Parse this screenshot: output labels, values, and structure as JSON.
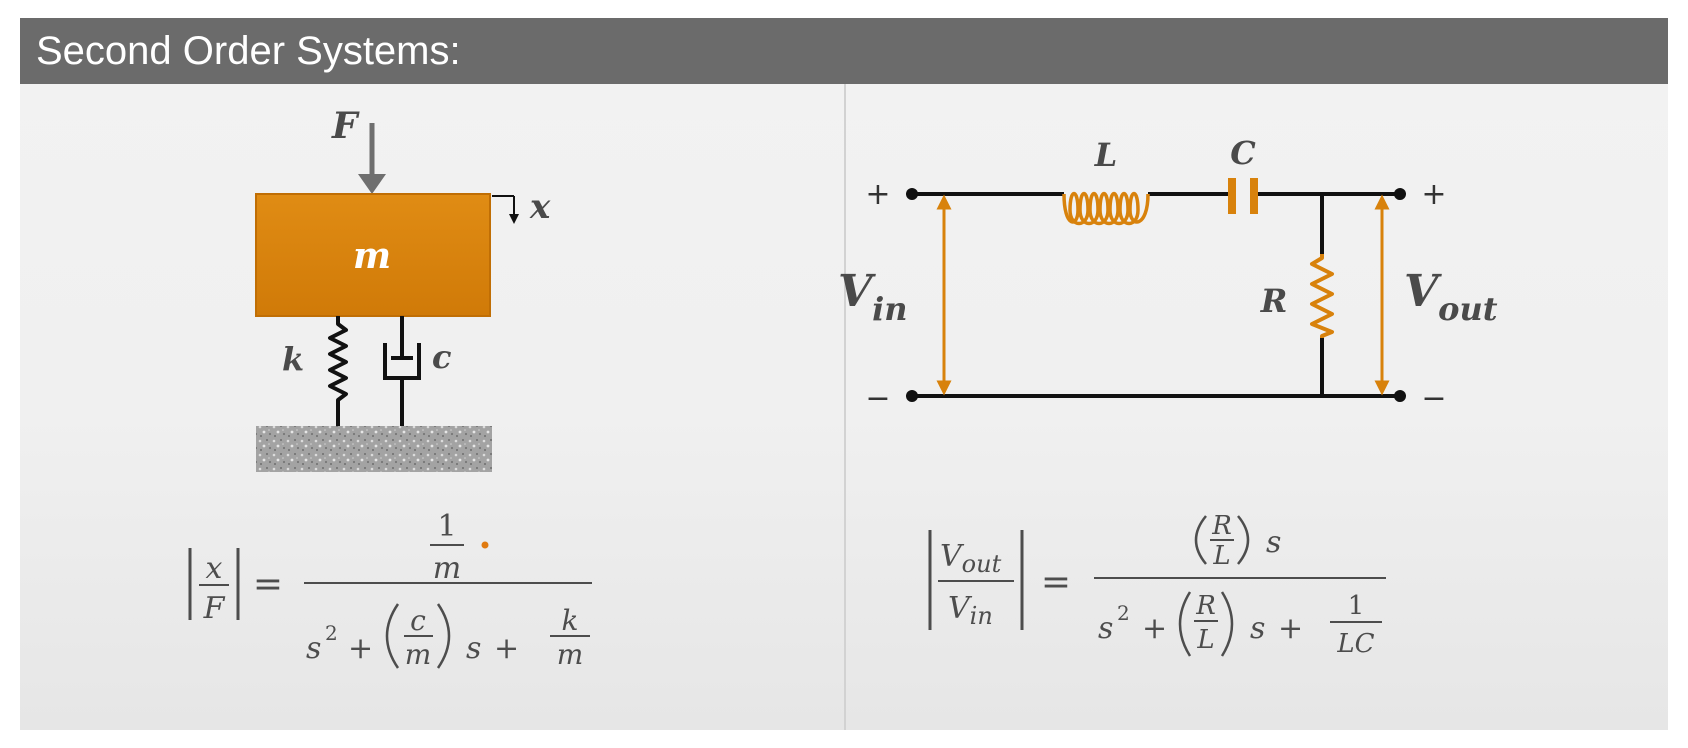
{
  "slide": {
    "title": "Second Order Systems:"
  },
  "mechanical": {
    "force_label": "F",
    "mass_label": "m",
    "displacement_label": "x",
    "spring_label": "k",
    "damper_label": "c",
    "equation": {
      "lhs_num": "x",
      "lhs_den": "F",
      "equals": "=",
      "rhs_num_num": "1",
      "rhs_num_den": "m",
      "den_s": "s",
      "den_pow": "2",
      "den_plus1": "+",
      "den_frac_num": "c",
      "den_frac_den": "m",
      "den_s2": "s",
      "den_plus2": "+",
      "den_k": "k",
      "den_m": "m"
    },
    "colors": {
      "mass": "#d8820c",
      "ground": "#9a9a9a",
      "arrow": "#6f6f6f"
    }
  },
  "electrical": {
    "inductor_label": "L",
    "capacitor_label": "C",
    "resistor_label": "R",
    "vin_main": "V",
    "vin_sub": "in",
    "vout_main": "V",
    "vout_sub": "out",
    "plus_left": "+",
    "minus_left": "−",
    "plus_right": "+",
    "minus_right": "−",
    "equation": {
      "lhs_num_main": "V",
      "lhs_num_sub": "out",
      "lhs_den_main": "V",
      "lhs_den_sub": "in",
      "equals": "=",
      "num_R": "R",
      "num_L": "L",
      "num_s": "s",
      "den_s": "s",
      "den_pow": "2",
      "den_plus1": "+",
      "den_R": "R",
      "den_L": "L",
      "den_s2": "s",
      "den_plus2": "+",
      "den_one": "1",
      "den_LC": "LC"
    },
    "colors": {
      "component": "#d8820c",
      "wire": "#111111"
    }
  }
}
